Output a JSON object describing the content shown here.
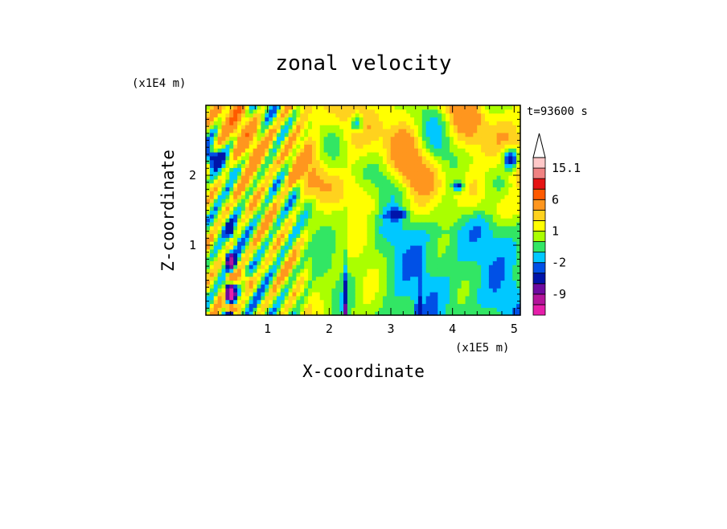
{
  "chart_data": {
    "type": "heatmap",
    "title": "zonal velocity",
    "xlabel": "X-coordinate",
    "ylabel": "Z-coordinate",
    "x_unit": "(x1E5 m)",
    "y_unit": "(x1E4 m)",
    "time_label": "t=93600 s",
    "xlim": [
      0.0,
      5.1
    ],
    "ylim": [
      0.0,
      3.0
    ],
    "x_ticks": [
      1,
      2,
      3,
      4,
      5
    ],
    "y_ticks": [
      1,
      2
    ],
    "colorbar": {
      "extend_max": true,
      "levels": [
        -15,
        -12,
        -9,
        -6,
        -3,
        -2,
        -1,
        0,
        1,
        2,
        3,
        6,
        9,
        12,
        15.1
      ],
      "labels": [
        "15.1",
        "6",
        "1",
        "-2",
        "-9"
      ],
      "label_values": [
        15.1,
        6,
        1,
        -2,
        -9
      ],
      "colors": [
        "#e61eaa",
        "#b4149b",
        "#6e0aa0",
        "#0014aa",
        "#0050e6",
        "#00c8ff",
        "#32e664",
        "#aaff00",
        "#ffff00",
        "#ffd21e",
        "#ff961e",
        "#ff5a00",
        "#e61414",
        "#f08282",
        "#ffc8c8"
      ],
      "extend_color": "#ffffff"
    },
    "grid": false,
    "field_description": [
      {
        "region": "broad lower-right layer",
        "value": 0.5,
        "note": "green, weak easterly/westerly near zero"
      },
      {
        "region": "upper-right layer z 1.5-2.9",
        "value": 2,
        "note": "yellow/orange with blue patches"
      },
      {
        "region": "left side x 0-1.6",
        "value": 1.5,
        "note": "tilted alternating yellow/orange/green bands"
      },
      {
        "region": "mountain at x ~0.4",
        "value": -9,
        "note": "strong blue/red near surface"
      },
      {
        "region": "mountain at x ~2.25",
        "value": -6,
        "note": "narrow blue spike"
      },
      {
        "region": "mountain at x ~3.45",
        "value": -3,
        "note": "narrow spike"
      }
    ]
  }
}
